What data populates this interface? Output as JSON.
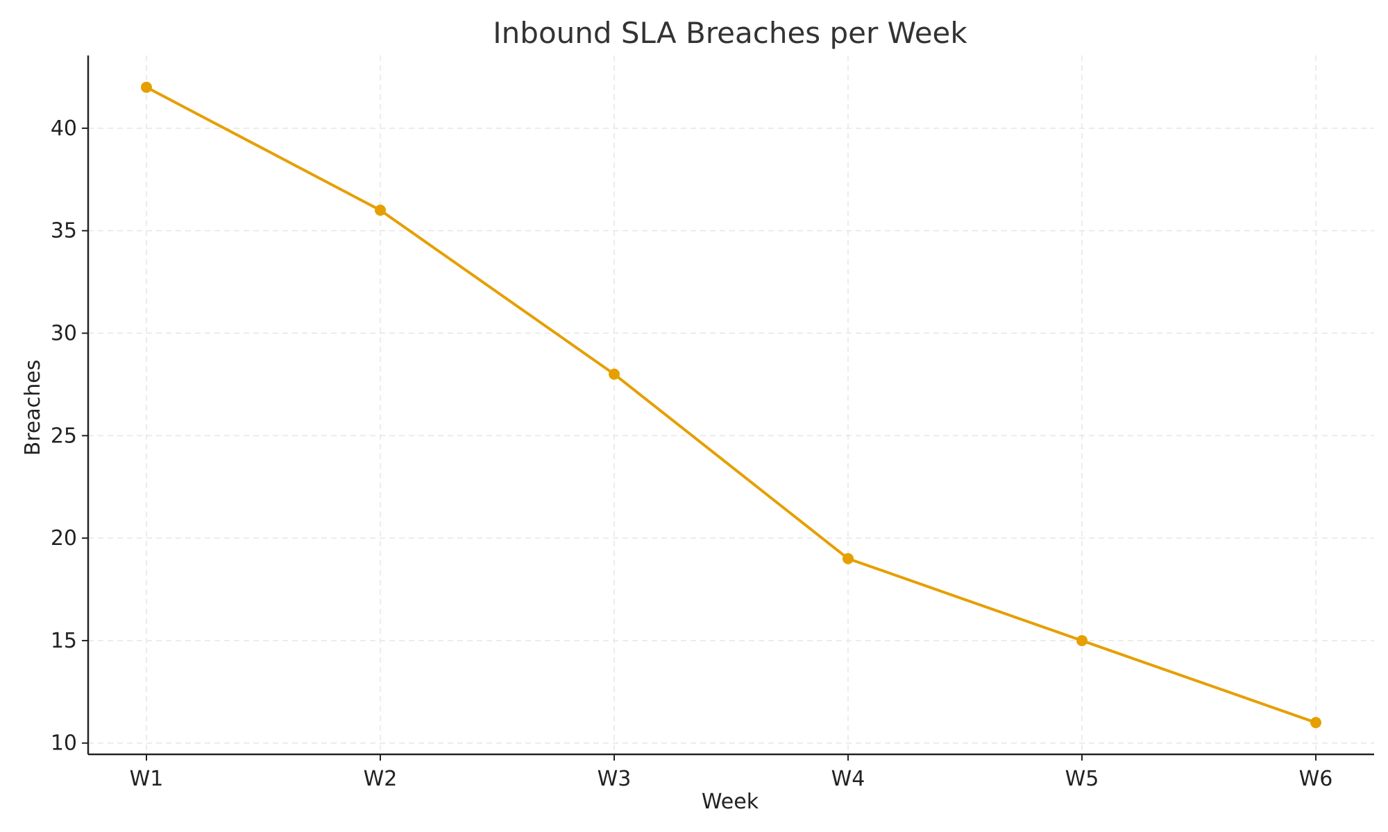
{
  "chart_data": {
    "type": "line",
    "title": "Inbound SLA Breaches per Week",
    "xlabel": "Week",
    "ylabel": "Breaches",
    "categories": [
      "W1",
      "W2",
      "W3",
      "W4",
      "W5",
      "W6"
    ],
    "series": [
      {
        "values": [
          42,
          36,
          28,
          19,
          15,
          11
        ],
        "color": "#E69F00"
      }
    ],
    "ylim": [
      9.45,
      43.55
    ],
    "yticks": [
      10,
      15,
      20,
      25,
      30,
      35,
      40
    ],
    "grid": true,
    "legend": "none",
    "markers": true
  }
}
